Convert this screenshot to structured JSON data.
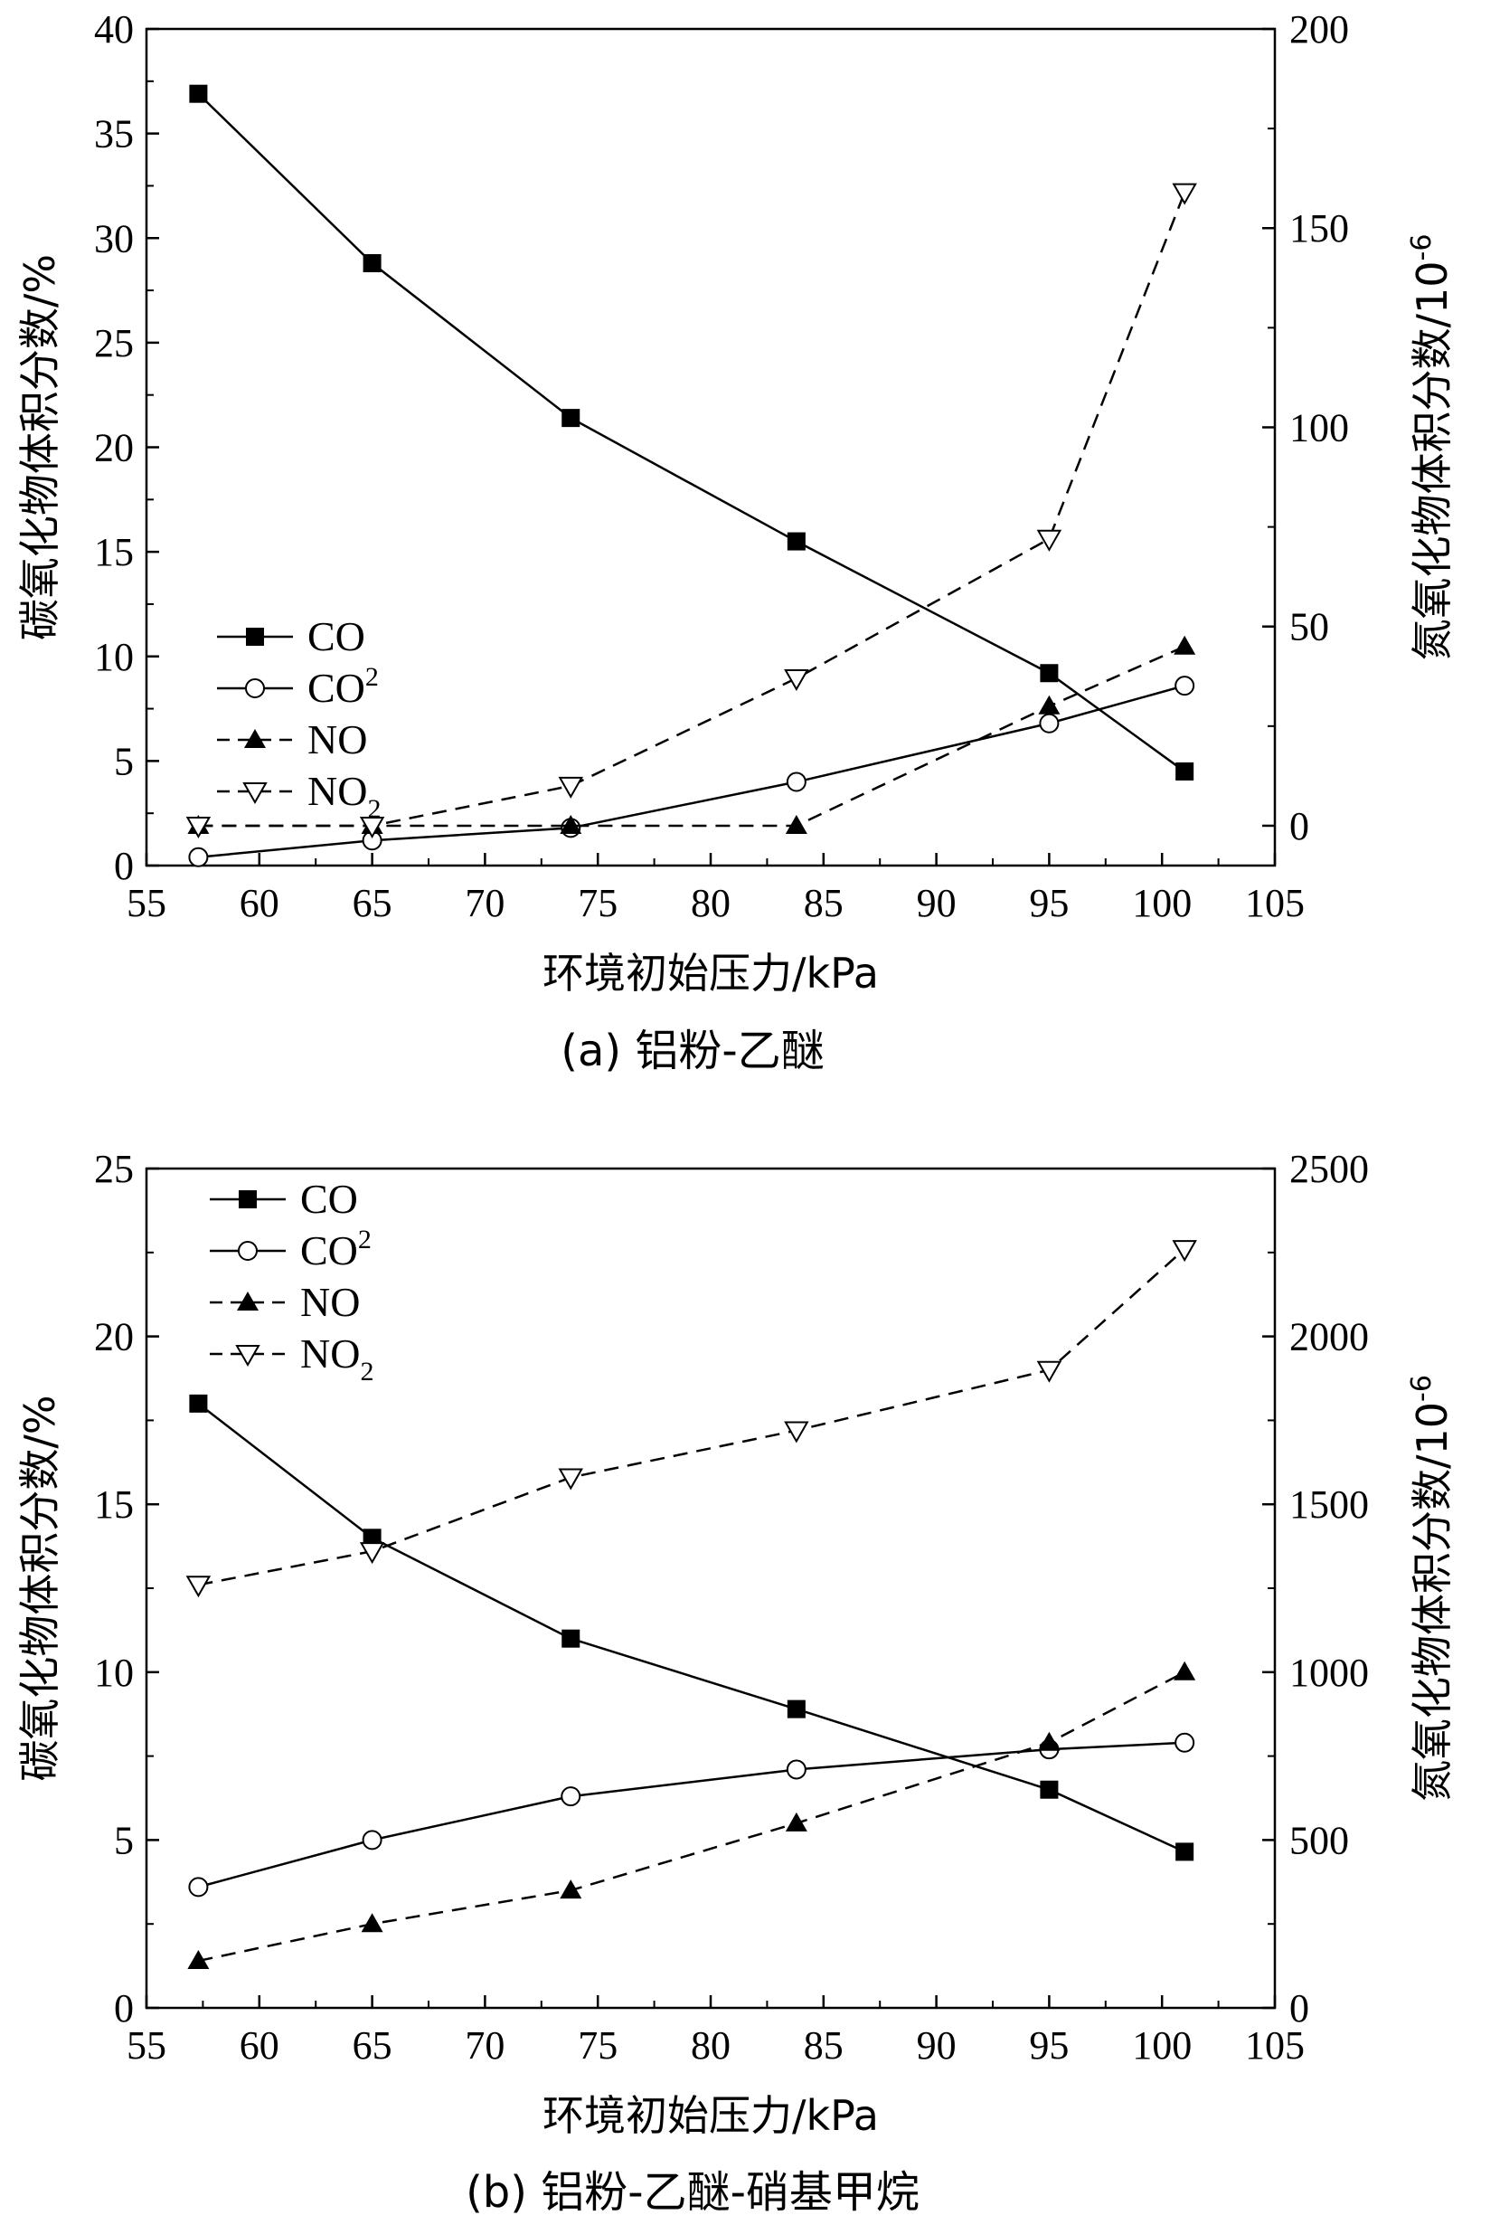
{
  "chart_data": [
    {
      "type": "line",
      "caption": "(a) 铝粉-乙醚",
      "xlabel": "环境初始压力/kPa",
      "ylabel_left": "碳氧化物体积分数/%",
      "ylabel_right": "氮氧化物体积分数/10",
      "ylabel_right_exp": "-6",
      "xlim": [
        55,
        105
      ],
      "xticks": [
        "55",
        "60",
        "65",
        "70",
        "75",
        "80",
        "85",
        "90",
        "95",
        "100",
        "105"
      ],
      "ylim_left": [
        0,
        40
      ],
      "yticks_left": [
        "0",
        "5",
        "10",
        "15",
        "20",
        "25",
        "30",
        "35",
        "40"
      ],
      "ylim_right": [
        -10,
        200
      ],
      "yticks_right": [
        "0",
        "50",
        "100",
        "150",
        "200"
      ],
      "legend_position": "center-left",
      "x": [
        57.3,
        65,
        73.8,
        83.8,
        95,
        101
      ],
      "series": [
        {
          "name": "CO",
          "axis": "left",
          "marker": "filled-square",
          "line": "solid",
          "values": [
            36.9,
            28.8,
            21.4,
            15.5,
            9.2,
            4.5
          ]
        },
        {
          "name": "CO",
          "sup": "2",
          "axis": "left",
          "marker": "open-circle",
          "line": "solid",
          "values": [
            0.4,
            1.2,
            1.8,
            4.0,
            6.8,
            8.6
          ]
        },
        {
          "name": "NO",
          "axis": "right",
          "marker": "filled-triangle-up",
          "line": "dashed",
          "values": [
            0,
            0,
            0,
            0,
            30,
            45
          ]
        },
        {
          "name": "NO",
          "sub": "2",
          "axis": "right",
          "marker": "open-triangle-down",
          "line": "dashed",
          "values": [
            0,
            0,
            10,
            37,
            72,
            159
          ]
        }
      ]
    },
    {
      "type": "line",
      "caption": "(b) 铝粉-乙醚-硝基甲烷",
      "xlabel": "环境初始压力/kPa",
      "ylabel_left": "碳氧化物体积分数/%",
      "ylabel_right": "氮氧化物体积分数/10",
      "ylabel_right_exp": "-6",
      "xlim": [
        55,
        105
      ],
      "xticks": [
        "55",
        "60",
        "65",
        "70",
        "75",
        "80",
        "85",
        "90",
        "95",
        "100",
        "105"
      ],
      "ylim_left": [
        0,
        25
      ],
      "yticks_left": [
        "0",
        "5",
        "10",
        "15",
        "20",
        "25"
      ],
      "ylim_right": [
        0,
        2500
      ],
      "yticks_right": [
        "0",
        "500",
        "1000",
        "1500",
        "2000",
        "2500"
      ],
      "legend_position": "top-left",
      "x": [
        57.3,
        65,
        73.8,
        83.8,
        95,
        101
      ],
      "series": [
        {
          "name": "CO",
          "axis": "left",
          "marker": "filled-square",
          "line": "solid",
          "values": [
            18.0,
            14.0,
            11.0,
            8.9,
            6.5,
            4.65
          ]
        },
        {
          "name": "CO",
          "sup": "2",
          "axis": "left",
          "marker": "open-circle",
          "line": "solid",
          "values": [
            3.6,
            5.0,
            6.3,
            7.1,
            7.7,
            7.9
          ]
        },
        {
          "name": "NO",
          "axis": "right",
          "marker": "filled-triangle-up",
          "line": "dashed",
          "values": [
            140,
            250,
            350,
            550,
            790,
            1000
          ]
        },
        {
          "name": "NO",
          "sub": "2",
          "axis": "right",
          "marker": "open-triangle-down",
          "line": "dashed",
          "values": [
            1260,
            1360,
            1580,
            1720,
            1900,
            2260
          ]
        }
      ]
    }
  ]
}
